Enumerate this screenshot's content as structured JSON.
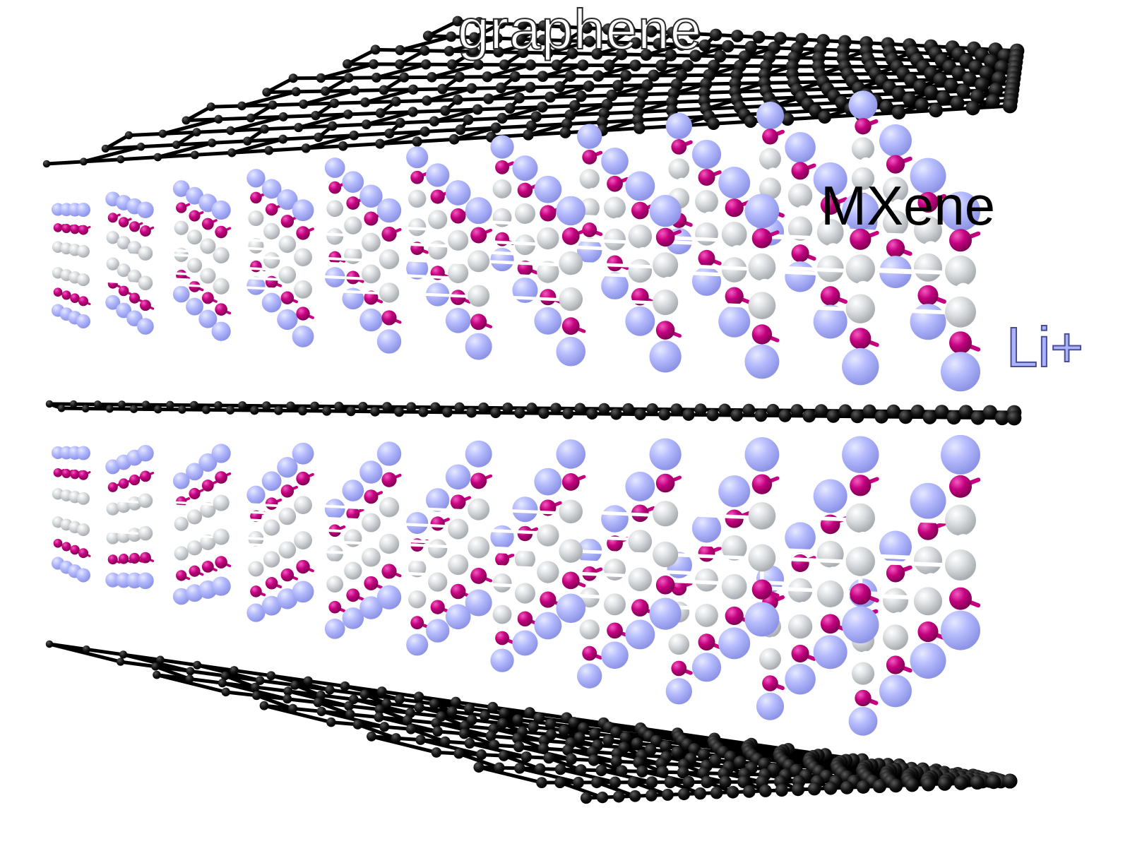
{
  "labels": {
    "graphene": "graphene",
    "mxene": "MXene",
    "li": "Li+"
  },
  "colors": {
    "background": "#ffffff",
    "graphene_atom": "#000000",
    "graphene_bond": "#000000",
    "mxene_metal": "#d4d7da",
    "mxene_bond": "#ffffff",
    "termination": "#c4007f",
    "li_ion": "#aeb5fd"
  },
  "structure": {
    "graphene_sheets": 3,
    "mxene_slabs": 2,
    "order_top_to_bottom": [
      "graphene",
      "MXene",
      "graphene",
      "MXene",
      "graphene"
    ]
  }
}
